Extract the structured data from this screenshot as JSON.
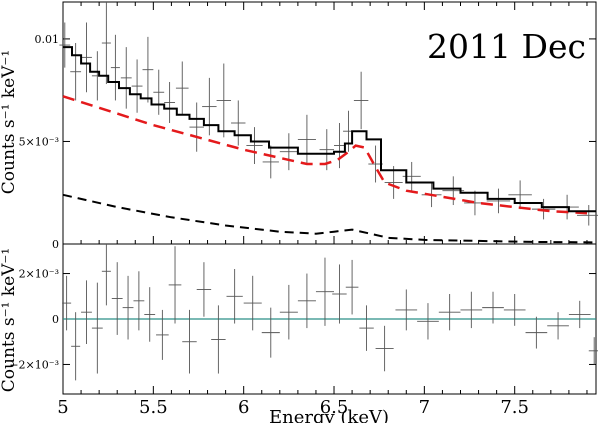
{
  "chart_data": [
    {
      "type": "line",
      "panel": "spectrum",
      "title": "2011 Dec",
      "ylabel": "Counts s⁻¹ keV⁻¹",
      "xlim": [
        5.0,
        7.95
      ],
      "ylim": [
        0,
        0.0118
      ],
      "yticks": [
        {
          "value": 0,
          "label": "0"
        },
        {
          "value": 0.005,
          "label": "5×10⁻³"
        },
        {
          "value": 0.01,
          "label": "0.01"
        }
      ],
      "data_points": {
        "x": [
          5.01,
          5.07,
          5.13,
          5.19,
          5.24,
          5.29,
          5.35,
          5.41,
          5.47,
          5.53,
          5.59,
          5.66,
          5.74,
          5.81,
          5.89,
          5.97,
          6.06,
          6.15,
          6.25,
          6.35,
          6.46,
          6.53,
          6.58,
          6.65,
          6.73,
          6.83,
          6.93,
          7.04,
          7.16,
          7.28,
          7.41,
          7.53,
          7.66,
          7.79,
          7.91
        ],
        "y": [
          0.0097,
          0.0084,
          0.0091,
          0.0082,
          0.0098,
          0.0086,
          0.0081,
          0.0077,
          0.0085,
          0.0074,
          0.0069,
          0.0076,
          0.0057,
          0.0067,
          0.007,
          0.0059,
          0.0048,
          0.004,
          0.0045,
          0.0051,
          0.0046,
          0.0048,
          0.0055,
          0.007,
          0.0039,
          0.003,
          0.0033,
          0.0024,
          0.0026,
          0.002,
          0.0021,
          0.0024,
          0.0017,
          0.0018,
          0.0014
        ],
        "y_err": [
          0.0011,
          0.0014,
          0.0017,
          0.0012,
          0.002,
          0.0016,
          0.0015,
          0.0013,
          0.0016,
          0.0011,
          0.001,
          0.0013,
          0.0012,
          0.0014,
          0.0018,
          0.0011,
          0.0009,
          0.0008,
          0.0009,
          0.0012,
          0.001,
          0.0011,
          0.001,
          0.0014,
          0.0009,
          0.0008,
          0.0007,
          0.0006,
          0.0007,
          0.0006,
          0.0006,
          0.0007,
          0.0005,
          0.0006,
          0.0005
        ],
        "x_err": [
          0.03,
          0.03,
          0.03,
          0.03,
          0.025,
          0.025,
          0.03,
          0.03,
          0.03,
          0.03,
          0.03,
          0.035,
          0.04,
          0.04,
          0.04,
          0.04,
          0.045,
          0.045,
          0.05,
          0.05,
          0.04,
          0.03,
          0.03,
          0.04,
          0.04,
          0.05,
          0.05,
          0.055,
          0.06,
          0.06,
          0.065,
          0.065,
          0.065,
          0.065,
          0.065
        ]
      },
      "total_model_step": {
        "edges": [
          5.0,
          5.05,
          5.1,
          5.15,
          5.2,
          5.25,
          5.31,
          5.37,
          5.43,
          5.49,
          5.56,
          5.63,
          5.7,
          5.78,
          5.86,
          5.95,
          6.04,
          6.14,
          6.3,
          6.5,
          6.56,
          6.6,
          6.68,
          6.76,
          6.9,
          7.05,
          7.2,
          7.35,
          7.5,
          7.65,
          7.8,
          7.95
        ],
        "values": [
          0.0096,
          0.0092,
          0.0088,
          0.0084,
          0.0082,
          0.0079,
          0.0076,
          0.0073,
          0.0071,
          0.0068,
          0.0066,
          0.0063,
          0.0061,
          0.0058,
          0.0055,
          0.0053,
          0.005,
          0.0047,
          0.0044,
          0.0045,
          0.0049,
          0.0055,
          0.0051,
          0.0036,
          0.003,
          0.0027,
          0.0025,
          0.0022,
          0.002,
          0.0018,
          0.0016
        ]
      },
      "red_model": {
        "x": [
          5.0,
          5.25,
          5.5,
          5.75,
          6.0,
          6.2,
          6.35,
          6.45,
          6.52,
          6.58,
          6.62,
          6.67,
          6.72,
          6.78,
          6.9,
          7.1,
          7.3,
          7.5,
          7.7,
          7.9
        ],
        "y": [
          0.0072,
          0.0065,
          0.0058,
          0.0052,
          0.0046,
          0.0042,
          0.0039,
          0.0039,
          0.0041,
          0.0045,
          0.0048,
          0.0047,
          0.0039,
          0.003,
          0.0026,
          0.0023,
          0.002,
          0.0018,
          0.0016,
          0.0015
        ]
      },
      "black_model": {
        "x": [
          5.0,
          5.3,
          5.6,
          5.9,
          6.2,
          6.4,
          6.5,
          6.6,
          6.7,
          6.8,
          7.0,
          7.3,
          7.6,
          7.95
        ],
        "y": [
          0.0024,
          0.0018,
          0.0013,
          0.0009,
          0.0006,
          0.0005,
          0.0006,
          0.0007,
          0.0005,
          0.0003,
          0.0002,
          0.00015,
          0.0001,
          8e-05
        ]
      }
    },
    {
      "type": "scatter",
      "panel": "residuals",
      "xlabel": "Energy (keV)",
      "ylabel": "Counts s⁻¹ keV⁻¹",
      "xlim": [
        5.0,
        7.95
      ],
      "ylim": [
        -0.0033,
        0.0033
      ],
      "xticks": [
        {
          "value": 5,
          "label": "5"
        },
        {
          "value": 5.5,
          "label": "5.5"
        },
        {
          "value": 6,
          "label": "6"
        },
        {
          "value": 6.5,
          "label": "6.5"
        },
        {
          "value": 7,
          "label": "7"
        },
        {
          "value": 7.5,
          "label": "7.5"
        }
      ],
      "yticks": [
        {
          "value": -0.002,
          "label": "−2×10⁻³"
        },
        {
          "value": 0,
          "label": "0"
        },
        {
          "value": 0.002,
          "label": "2×10⁻³"
        }
      ],
      "zero_line_color": "#2a8f86",
      "data_points": {
        "x": [
          5.02,
          5.07,
          5.13,
          5.19,
          5.24,
          5.3,
          5.36,
          5.42,
          5.48,
          5.55,
          5.62,
          5.7,
          5.78,
          5.86,
          5.95,
          6.05,
          6.15,
          6.25,
          6.35,
          6.45,
          6.53,
          6.6,
          6.68,
          6.78,
          6.9,
          7.02,
          7.14,
          7.26,
          7.38,
          7.5,
          7.62,
          7.74,
          7.86,
          7.94
        ],
        "y": [
          0.0007,
          -0.0012,
          0.0003,
          -0.0004,
          0.0021,
          0.0009,
          0.0005,
          0.0008,
          0.0002,
          -0.0007,
          0.0015,
          -0.001,
          0.0013,
          -0.0009,
          0.001,
          0.0007,
          -0.0006,
          0.0003,
          0.0008,
          0.0012,
          0.0011,
          0.0014,
          -0.0004,
          -0.0013,
          0.0004,
          -0.0001,
          0.0003,
          0.0004,
          0.0005,
          0.0004,
          -0.0006,
          -0.0003,
          0.0002,
          -0.0014
        ],
        "y_err": [
          0.0012,
          0.0015,
          0.0014,
          0.002,
          0.0015,
          0.0016,
          0.0014,
          0.0013,
          0.0012,
          0.0011,
          0.0017,
          0.0014,
          0.0012,
          0.0015,
          0.0012,
          0.0012,
          0.0011,
          0.0012,
          0.0012,
          0.0015,
          0.0013,
          0.0012,
          0.001,
          0.001,
          0.0009,
          0.0008,
          0.0008,
          0.0008,
          0.0007,
          0.0007,
          0.0007,
          0.0006,
          0.0006,
          0.0006
        ],
        "x_err": [
          0.025,
          0.025,
          0.03,
          0.03,
          0.025,
          0.03,
          0.03,
          0.03,
          0.03,
          0.035,
          0.035,
          0.04,
          0.04,
          0.04,
          0.045,
          0.05,
          0.05,
          0.05,
          0.05,
          0.05,
          0.04,
          0.035,
          0.04,
          0.05,
          0.06,
          0.06,
          0.06,
          0.06,
          0.06,
          0.06,
          0.06,
          0.06,
          0.06,
          0.03
        ]
      }
    }
  ]
}
